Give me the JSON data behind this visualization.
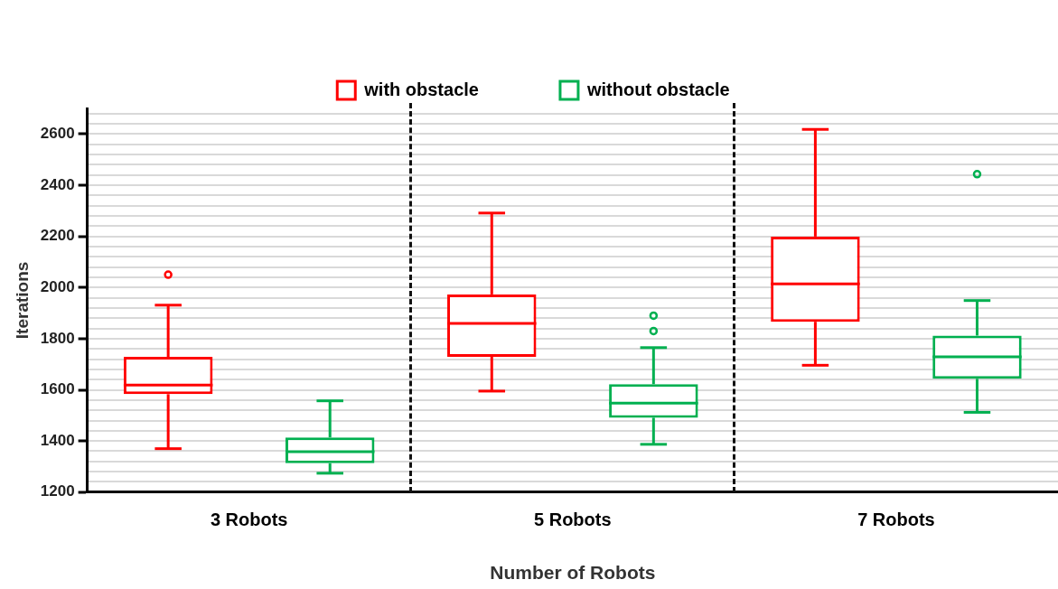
{
  "chart_data": {
    "type": "box",
    "xlabel": "Number of Robots",
    "ylabel": "Iterations",
    "categories": [
      "3 Robots",
      "5 Robots",
      "7 Robots"
    ],
    "series": [
      {
        "name": "with obstacle",
        "color": "#ff0000",
        "boxes": [
          {
            "low": 1370,
            "q1": 1583,
            "median": 1619,
            "q3": 1729,
            "high": 1931,
            "outliers": [
              2050
            ]
          },
          {
            "low": 1595,
            "q1": 1729,
            "median": 1860,
            "q3": 1973,
            "high": 2291
          },
          {
            "low": 1696,
            "q1": 1866,
            "median": 2014,
            "q3": 2199,
            "high": 2618
          }
        ]
      },
      {
        "name": "without obstacle",
        "color": "#00b050",
        "boxes": [
          {
            "low": 1274,
            "q1": 1313,
            "median": 1358,
            "q3": 1414,
            "high": 1557
          },
          {
            "low": 1387,
            "q1": 1491,
            "median": 1548,
            "q3": 1622,
            "high": 1765,
            "outliers": [
              1830,
              1890
            ]
          },
          {
            "low": 1512,
            "q1": 1643,
            "median": 1729,
            "q3": 1812,
            "high": 1949,
            "outliers": [
              2443
            ]
          }
        ]
      }
    ],
    "ylim": [
      1200,
      2700
    ],
    "yticks": [
      1200,
      {
        "value": 1240,
        "label": null
      },
      {
        "value": 1280,
        "label": null
      },
      {
        "value": 1320,
        "label": null
      },
      {
        "value": 1360,
        "label": null
      },
      1400,
      {
        "value": 1440,
        "label": null
      },
      {
        "value": 1480,
        "label": null
      },
      {
        "value": 1520,
        "label": null
      },
      {
        "value": 1560,
        "label": null
      },
      1600,
      {
        "value": 1640,
        "label": null
      },
      {
        "value": 1680,
        "label": null
      },
      {
        "value": 1720,
        "label": null
      },
      {
        "value": 1760,
        "label": null
      },
      1800,
      {
        "value": 1840,
        "label": null
      },
      {
        "value": 1880,
        "label": null
      },
      {
        "value": 1920,
        "label": null
      },
      {
        "value": 1960,
        "label": null
      },
      2000,
      {
        "value": 2040,
        "label": null
      },
      {
        "value": 2080,
        "label": null
      },
      {
        "value": 2120,
        "label": null
      },
      {
        "value": 2160,
        "label": null
      },
      2200,
      {
        "value": 2240,
        "label": null
      },
      {
        "value": 2280,
        "label": null
      },
      {
        "value": 2320,
        "label": null
      },
      {
        "value": 2360,
        "label": null
      },
      2400,
      {
        "value": 2440,
        "label": null
      },
      {
        "value": 2480,
        "label": null
      },
      {
        "value": 2520,
        "label": null
      },
      {
        "value": 2560,
        "label": null
      },
      2600,
      {
        "value": 2640,
        "label": null
      },
      {
        "value": 2680,
        "label": null
      }
    ],
    "grid": "y",
    "legend": "top"
  }
}
